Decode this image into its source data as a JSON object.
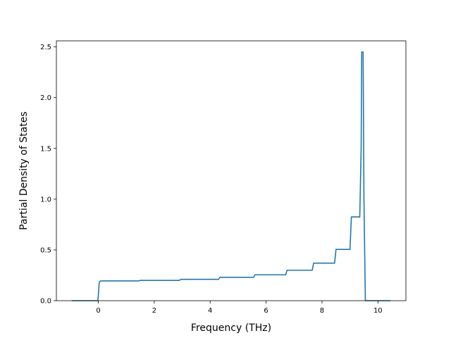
{
  "chart_data": {
    "type": "line",
    "title": "",
    "xlabel": "Frequency (THz)",
    "ylabel": "Partial Density of States",
    "xlim": [
      -1.5,
      11.0
    ],
    "ylim": [
      0.0,
      2.56
    ],
    "xticks": [
      0,
      2,
      4,
      6,
      8,
      10
    ],
    "xtick_labels": [
      "0",
      "2",
      "4",
      "6",
      "8",
      "10"
    ],
    "yticks": [
      0.0,
      0.5,
      1.0,
      1.5,
      2.0,
      2.5
    ],
    "ytick_labels": [
      "0.0",
      "0.5",
      "1.0",
      "1.5",
      "2.0",
      "2.5"
    ],
    "grid": false,
    "legend": "none",
    "series": [
      {
        "color": "#1f77b4",
        "x": [
          -0.95,
          -0.02,
          0.0,
          0.03,
          0.05,
          0.1,
          1.45,
          1.5,
          2.9,
          2.95,
          4.3,
          4.35,
          5.55,
          5.6,
          6.7,
          6.75,
          7.65,
          7.7,
          8.45,
          8.5,
          9.0,
          9.05,
          9.35,
          9.4,
          9.42,
          9.47,
          9.5,
          9.55,
          10.45
        ],
        "y": [
          0.0,
          0.0,
          0.05,
          0.17,
          0.19,
          0.195,
          0.195,
          0.2,
          0.2,
          0.21,
          0.21,
          0.23,
          0.23,
          0.255,
          0.255,
          0.3,
          0.3,
          0.37,
          0.37,
          0.505,
          0.505,
          0.825,
          0.825,
          1.5,
          2.45,
          2.45,
          1.0,
          0.0,
          0.0
        ]
      }
    ]
  }
}
